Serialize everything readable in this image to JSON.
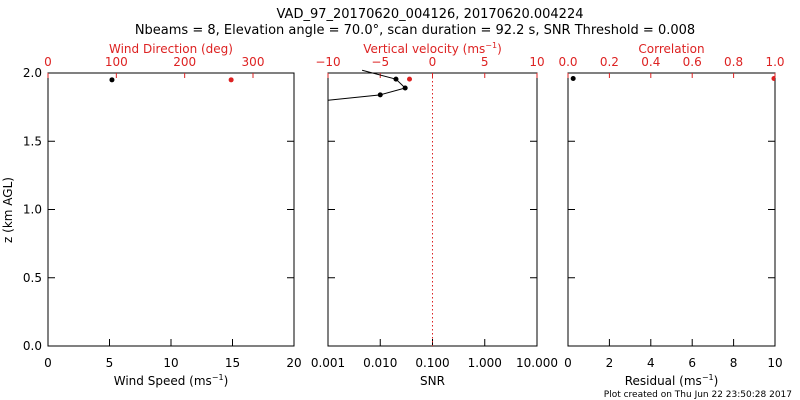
{
  "header": {
    "title": "VAD_97_20170620_004126, 20170620.004224",
    "subtitle": "Nbeams = 8, Elevation angle = 70.0°, scan duration = 92.2 s, SNR Threshold = 0.008"
  },
  "footer": {
    "plot_created": "Plot created on Thu Jun 22 23:50:28 2017"
  },
  "colors": {
    "primary": "#000000",
    "accent": "#dd2222"
  },
  "chart_data": [
    {
      "type": "scatter",
      "ylabel": "z (km AGL)",
      "ylim": [
        0,
        2
      ],
      "yticks": [
        "0.0",
        "0.5",
        "1.0",
        "1.5",
        "2.0"
      ],
      "bottom_axis": {
        "label_main": "Wind Speed (ms",
        "label_sup": "−1",
        "label_end": ")",
        "lim": [
          0,
          20
        ],
        "ticks": [
          "0",
          "5",
          "10",
          "15",
          "20"
        ]
      },
      "top_axis": {
        "label": "Wind Direction (deg)",
        "lim": [
          0,
          360
        ],
        "ticks": [
          "0",
          "100",
          "200",
          "300"
        ]
      },
      "series": [
        {
          "axis": "bottom",
          "color": "#000000",
          "points": [
            {
              "x": 5.2,
              "y": 1.95
            }
          ]
        },
        {
          "axis": "top",
          "color": "#dd2222",
          "points": [
            {
              "x": 268,
              "y": 1.95
            }
          ]
        }
      ]
    },
    {
      "type": "line",
      "ylim": [
        0,
        2
      ],
      "bottom_axis": {
        "label": "SNR",
        "scale": "log",
        "lim": [
          0.001,
          10
        ],
        "ticks": [
          "0.001",
          "0.010",
          "0.100",
          "1.000",
          "10.000"
        ]
      },
      "top_axis": {
        "label_main": "Vertical velocity (ms",
        "label_sup": "−1",
        "label_end": ")",
        "lim": [
          -10,
          10
        ],
        "ticks": [
          "−10",
          "−5",
          "0",
          "5",
          "10"
        ]
      },
      "reference_line": {
        "axis": "top",
        "x": 0,
        "style": "dotted",
        "color": "#dd2222"
      },
      "series": [
        {
          "axis": "bottom",
          "color": "#000000",
          "points": [
            {
              "x": 0.0045,
              "y": 2.02
            },
            {
              "x": 0.02,
              "y": 1.955
            },
            {
              "x": 0.03,
              "y": 1.89
            },
            {
              "x": 0.01,
              "y": 1.84
            },
            {
              "x": 0.001,
              "y": 1.8
            }
          ]
        },
        {
          "axis": "top",
          "color": "#dd2222",
          "points": [
            {
              "x": -2.2,
              "y": 1.955
            }
          ]
        }
      ]
    },
    {
      "type": "scatter",
      "ylim": [
        0,
        2
      ],
      "bottom_axis": {
        "label_main": "Residual (ms",
        "label_sup": "−1",
        "label_end": ")",
        "lim": [
          0,
          10
        ],
        "ticks": [
          "0",
          "2",
          "4",
          "6",
          "8",
          "10"
        ]
      },
      "top_axis": {
        "label": "Correlation",
        "lim": [
          0,
          1
        ],
        "ticks": [
          "0.0",
          "0.2",
          "0.4",
          "0.6",
          "0.8",
          "1.0"
        ]
      },
      "series": [
        {
          "axis": "bottom",
          "color": "#000000",
          "points": [
            {
              "x": 0.25,
              "y": 1.96
            }
          ]
        },
        {
          "axis": "top",
          "color": "#dd2222",
          "points": [
            {
              "x": 0.995,
              "y": 1.96
            }
          ]
        }
      ]
    }
  ]
}
